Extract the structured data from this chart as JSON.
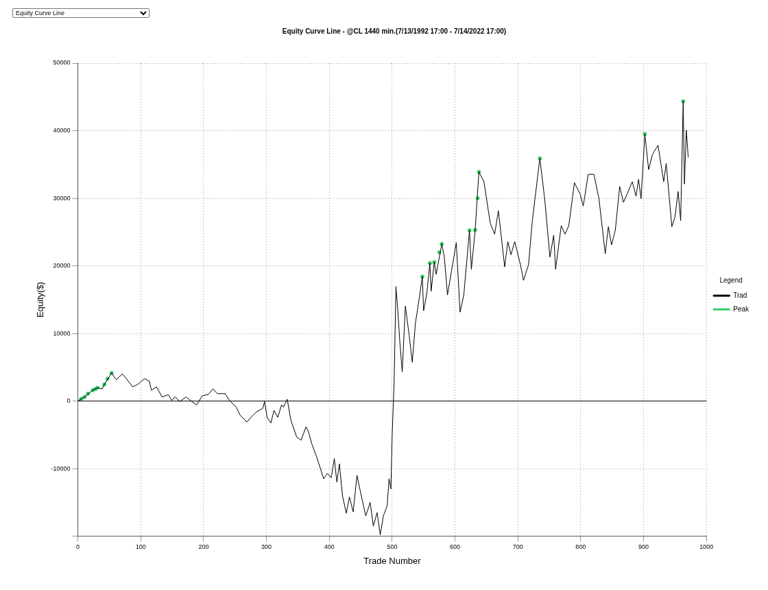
{
  "chart_data": {
    "type": "line",
    "title": "Equity Curve Line - @CL 1440 min.(7/13/1992 17:00 - 7/14/2022 17:00)",
    "xlabel": "Trade Number",
    "ylabel": "Equity($)",
    "legend_title": "Legend",
    "annotations": [
      "Equity Curve Line"
    ],
    "xlim": [
      0,
      1000
    ],
    "xticks": [
      0,
      100,
      200,
      300,
      400,
      500,
      600,
      700,
      800,
      900,
      1000
    ],
    "ylim": [
      -20000,
      50000
    ],
    "yticks": [
      {
        "value": -20000,
        "label": null
      },
      -10000,
      0,
      10000,
      20000,
      30000,
      40000,
      50000
    ],
    "grid": true,
    "legend": "right",
    "ref_lines": [
      {
        "axis": "y",
        "value": 0,
        "color": "#000000"
      }
    ],
    "series": [
      {
        "name": "Trad",
        "type": "line",
        "color": "#000000",
        "marker": "none",
        "x": [
          0,
          10.5,
          23.6,
          31,
          38.6,
          42,
          53.6,
          61,
          70.5,
          76,
          87,
          95,
          106,
          113.6,
          117,
          125,
          134,
          144,
          149,
          155,
          162,
          172,
          181,
          189,
          198,
          207,
          215,
          222,
          234,
          241,
          252,
          258,
          269,
          277,
          284,
          294,
          297,
          301,
          307,
          312,
          318,
          324,
          327,
          333,
          339,
          348,
          355,
          363,
          367,
          372,
          380,
          391,
          397,
          403,
          408,
          412,
          416,
          421,
          427,
          432,
          438,
          444,
          452,
          458,
          465,
          470,
          476,
          481,
          486,
          492,
          495,
          498,
          500,
          503,
          506,
          509,
          512,
          516,
          521,
          527,
          532,
          537,
          541,
          548,
          550,
          555,
          560,
          562,
          567,
          570,
          579,
          583,
          588,
          602,
          608,
          614,
          623,
          626,
          632,
          638,
          646,
          656,
          663,
          669,
          679,
          684,
          689,
          695,
          704,
          709,
          717,
          723,
          735,
          743,
          751,
          757,
          760,
          769,
          775,
          781,
          790,
          799,
          804,
          812,
          821,
          829,
          839,
          844,
          849,
          855,
          862,
          868,
          874,
          882,
          888,
          892,
          896,
          902,
          908,
          914,
          923,
          932,
          936,
          945,
          950,
          955,
          959,
          963,
          965,
          968,
          971
        ],
        "values": [
          0,
          600,
          1600,
          1950,
          1800,
          2450,
          4150,
          3150,
          4000,
          3450,
          2100,
          2450,
          3300,
          2950,
          1600,
          2100,
          600,
          950,
          100,
          600,
          -70,
          600,
          -70,
          -570,
          800,
          950,
          1800,
          1100,
          1100,
          100,
          -900,
          -2100,
          -3100,
          -2250,
          -1600,
          -1100,
          -70,
          -2400,
          -3250,
          -1400,
          -2400,
          -570,
          -900,
          270,
          -2900,
          -5300,
          -5800,
          -3800,
          -4600,
          -6300,
          -8300,
          -11500,
          -10700,
          -11350,
          -8500,
          -12000,
          -9300,
          -14050,
          -16600,
          -14200,
          -16400,
          -11000,
          -14500,
          -17000,
          -15000,
          -18500,
          -16500,
          -19800,
          -17000,
          -15500,
          -11500,
          -13000,
          -5000,
          2500,
          16950,
          13350,
          9000,
          4300,
          14050,
          9750,
          5750,
          11550,
          13900,
          18400,
          13350,
          15850,
          20400,
          16250,
          20550,
          18750,
          23250,
          21300,
          15700,
          23450,
          13150,
          15700,
          25250,
          19500,
          25250,
          33900,
          32450,
          26350,
          24700,
          28150,
          19850,
          23600,
          21650,
          23600,
          20200,
          17850,
          20200,
          26700,
          35900,
          29600,
          21300,
          24550,
          19500,
          25950,
          24700,
          25950,
          32300,
          30650,
          28850,
          33550,
          33550,
          29950,
          21800,
          25800,
          23100,
          25250,
          31750,
          29400,
          30650,
          32450,
          30300,
          32800,
          29950,
          39500,
          34250,
          36450,
          37850,
          32450,
          35150,
          25800,
          27250,
          31000,
          26700,
          44350,
          32100,
          40050,
          36050
        ]
      },
      {
        "name": "Peak",
        "type": "scatter",
        "color": "#33cc66",
        "marker": "circle",
        "x": [
          5,
          10.5,
          16,
          23.6,
          28,
          31,
          42,
          47,
          53.6,
          548,
          560,
          567,
          575,
          579,
          623,
          632,
          636,
          638,
          735,
          902,
          963
        ],
        "values": [
          300,
          600,
          1100,
          1600,
          1800,
          1950,
          2450,
          3300,
          4150,
          18400,
          20400,
          20550,
          22000,
          23250,
          25250,
          25300,
          30000,
          33900,
          35900,
          39500,
          44350
        ]
      }
    ]
  }
}
